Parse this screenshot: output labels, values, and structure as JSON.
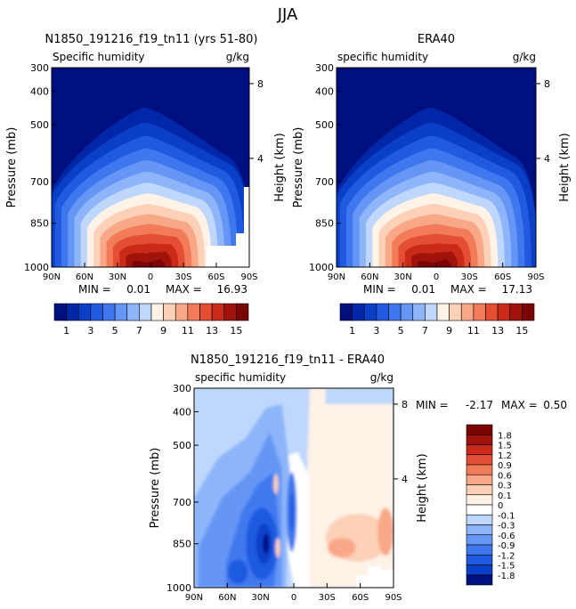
{
  "figure": {
    "title": "JJA"
  },
  "chart_data": [
    {
      "type": "heatmap",
      "title": "N1850_191216_f19_tn11 (yrs 51-80)",
      "subtitle_left": "Specific humidity",
      "units": "g/kg",
      "ylabel": "Pressure (mb)",
      "ylabel_right": "Height (km)",
      "x_ticks": [
        "90N",
        "60N",
        "30N",
        "0",
        "30S",
        "60S",
        "90S"
      ],
      "y_ticks": [
        "300",
        "400",
        "500",
        "700",
        "850",
        "1000"
      ],
      "y_right_ticks": [
        "8",
        "4"
      ],
      "stats_text": {
        "min_label": "MIN =",
        "min": "0.01",
        "max_label": "MAX =",
        "max": "16.93"
      },
      "min": 0.01,
      "max": 16.93,
      "colorbar_levels": [
        "1",
        "3",
        "5",
        "7",
        "9",
        "11",
        "13",
        "15"
      ],
      "colors": [
        "#000f80",
        "#0027a8",
        "#0a3fc8",
        "#1f5ae0",
        "#3f78ee",
        "#6596f5",
        "#8eb5fa",
        "#bfd7fd",
        "#fff2e6",
        "#fdd0b8",
        "#f9a887",
        "#f27c59",
        "#e44f33",
        "#c92b18",
        "#a0130b",
        "#7b0505"
      ]
    },
    {
      "type": "heatmap",
      "title": "ERA40",
      "subtitle_left": "specific humidity",
      "units": "g/kg",
      "ylabel": "Pressure (mb)",
      "ylabel_right": "Height (km)",
      "x_ticks": [
        "90N",
        "60N",
        "30N",
        "0",
        "30S",
        "60S",
        "90S"
      ],
      "y_ticks": [
        "300",
        "400",
        "500",
        "700",
        "850",
        "1000"
      ],
      "y_right_ticks": [
        "8",
        "4"
      ],
      "stats_text": {
        "min_label": "MIN =",
        "min": "0.01",
        "max_label": "MAX =",
        "max": "17.13"
      },
      "min": 0.01,
      "max": 17.13,
      "colorbar_levels": [
        "1",
        "3",
        "5",
        "7",
        "9",
        "11",
        "13",
        "15"
      ]
    },
    {
      "type": "heatmap",
      "title": "N1850_191216_f19_tn11 - ERA40",
      "subtitle_left": "specific humidity",
      "units": "g/kg",
      "ylabel": "Pressure (mb)",
      "ylabel_right": "Height (km)",
      "x_ticks": [
        "90N",
        "60N",
        "30N",
        "0",
        "30S",
        "60S",
        "90S"
      ],
      "y_ticks": [
        "300",
        "400",
        "500",
        "700",
        "850",
        "1000"
      ],
      "y_right_ticks": [
        "8",
        "4"
      ],
      "stats_text": {
        "min_label": "MIN =",
        "min": "-2.17",
        "max_label": "MAX =",
        "max": "0.50"
      },
      "min": -2.17,
      "max": 0.5,
      "colorbar_levels": [
        "1.8",
        "1.5",
        "1.2",
        "0.9",
        "0.6",
        "0.3",
        "0.1",
        "0",
        "-0.1",
        "-0.3",
        "-0.6",
        "-0.9",
        "-1.2",
        "-1.5",
        "-1.8"
      ],
      "colors": [
        "#7b0505",
        "#a0130b",
        "#c92b18",
        "#e44f33",
        "#f27c59",
        "#f9a887",
        "#fdd0b8",
        "#fff2e6",
        "#ffffff",
        "#bfd7fd",
        "#8eb5fa",
        "#6596f5",
        "#3f78ee",
        "#1f5ae0",
        "#0a3fc8",
        "#000f80"
      ]
    }
  ]
}
